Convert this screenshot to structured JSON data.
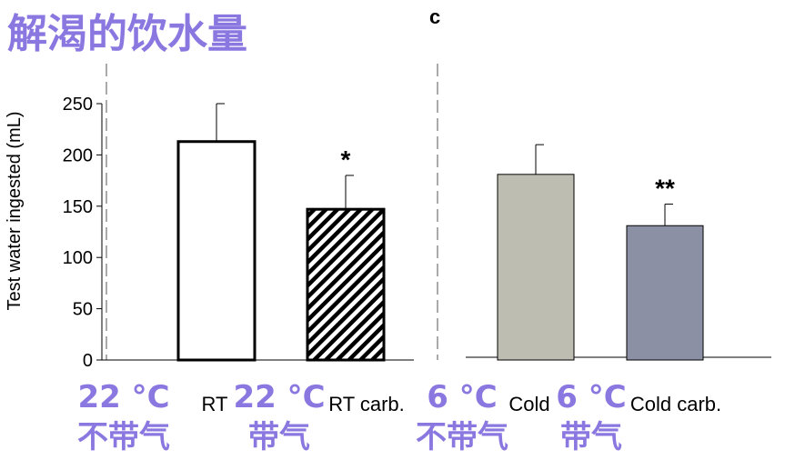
{
  "title": "解渴的饮水量",
  "panel_label": "c",
  "chart_data": {
    "type": "bar",
    "ylabel": "Test water ingested (mL)",
    "ylim": [
      0,
      250
    ],
    "yticks": [
      0,
      50,
      100,
      150,
      200,
      250
    ],
    "grid": false,
    "categories": [
      "RT",
      "RT carb.",
      "Cold",
      "Cold carb."
    ],
    "values": [
      213,
      147,
      181,
      131
    ],
    "errors": [
      37,
      33,
      29,
      21
    ],
    "significance": [
      "",
      "*",
      "",
      "**"
    ],
    "bar_colors": [
      "#ffffff",
      "hatched",
      "#bebdb2",
      "#8c90a4"
    ]
  },
  "annotations": [
    {
      "line1": "22 °C",
      "line2": "不带气"
    },
    {
      "line1": "22 °C",
      "line2": "带气"
    },
    {
      "line1": "6 °C",
      "line2": "不带气"
    },
    {
      "line1": "6 °C",
      "line2": "带气"
    }
  ]
}
